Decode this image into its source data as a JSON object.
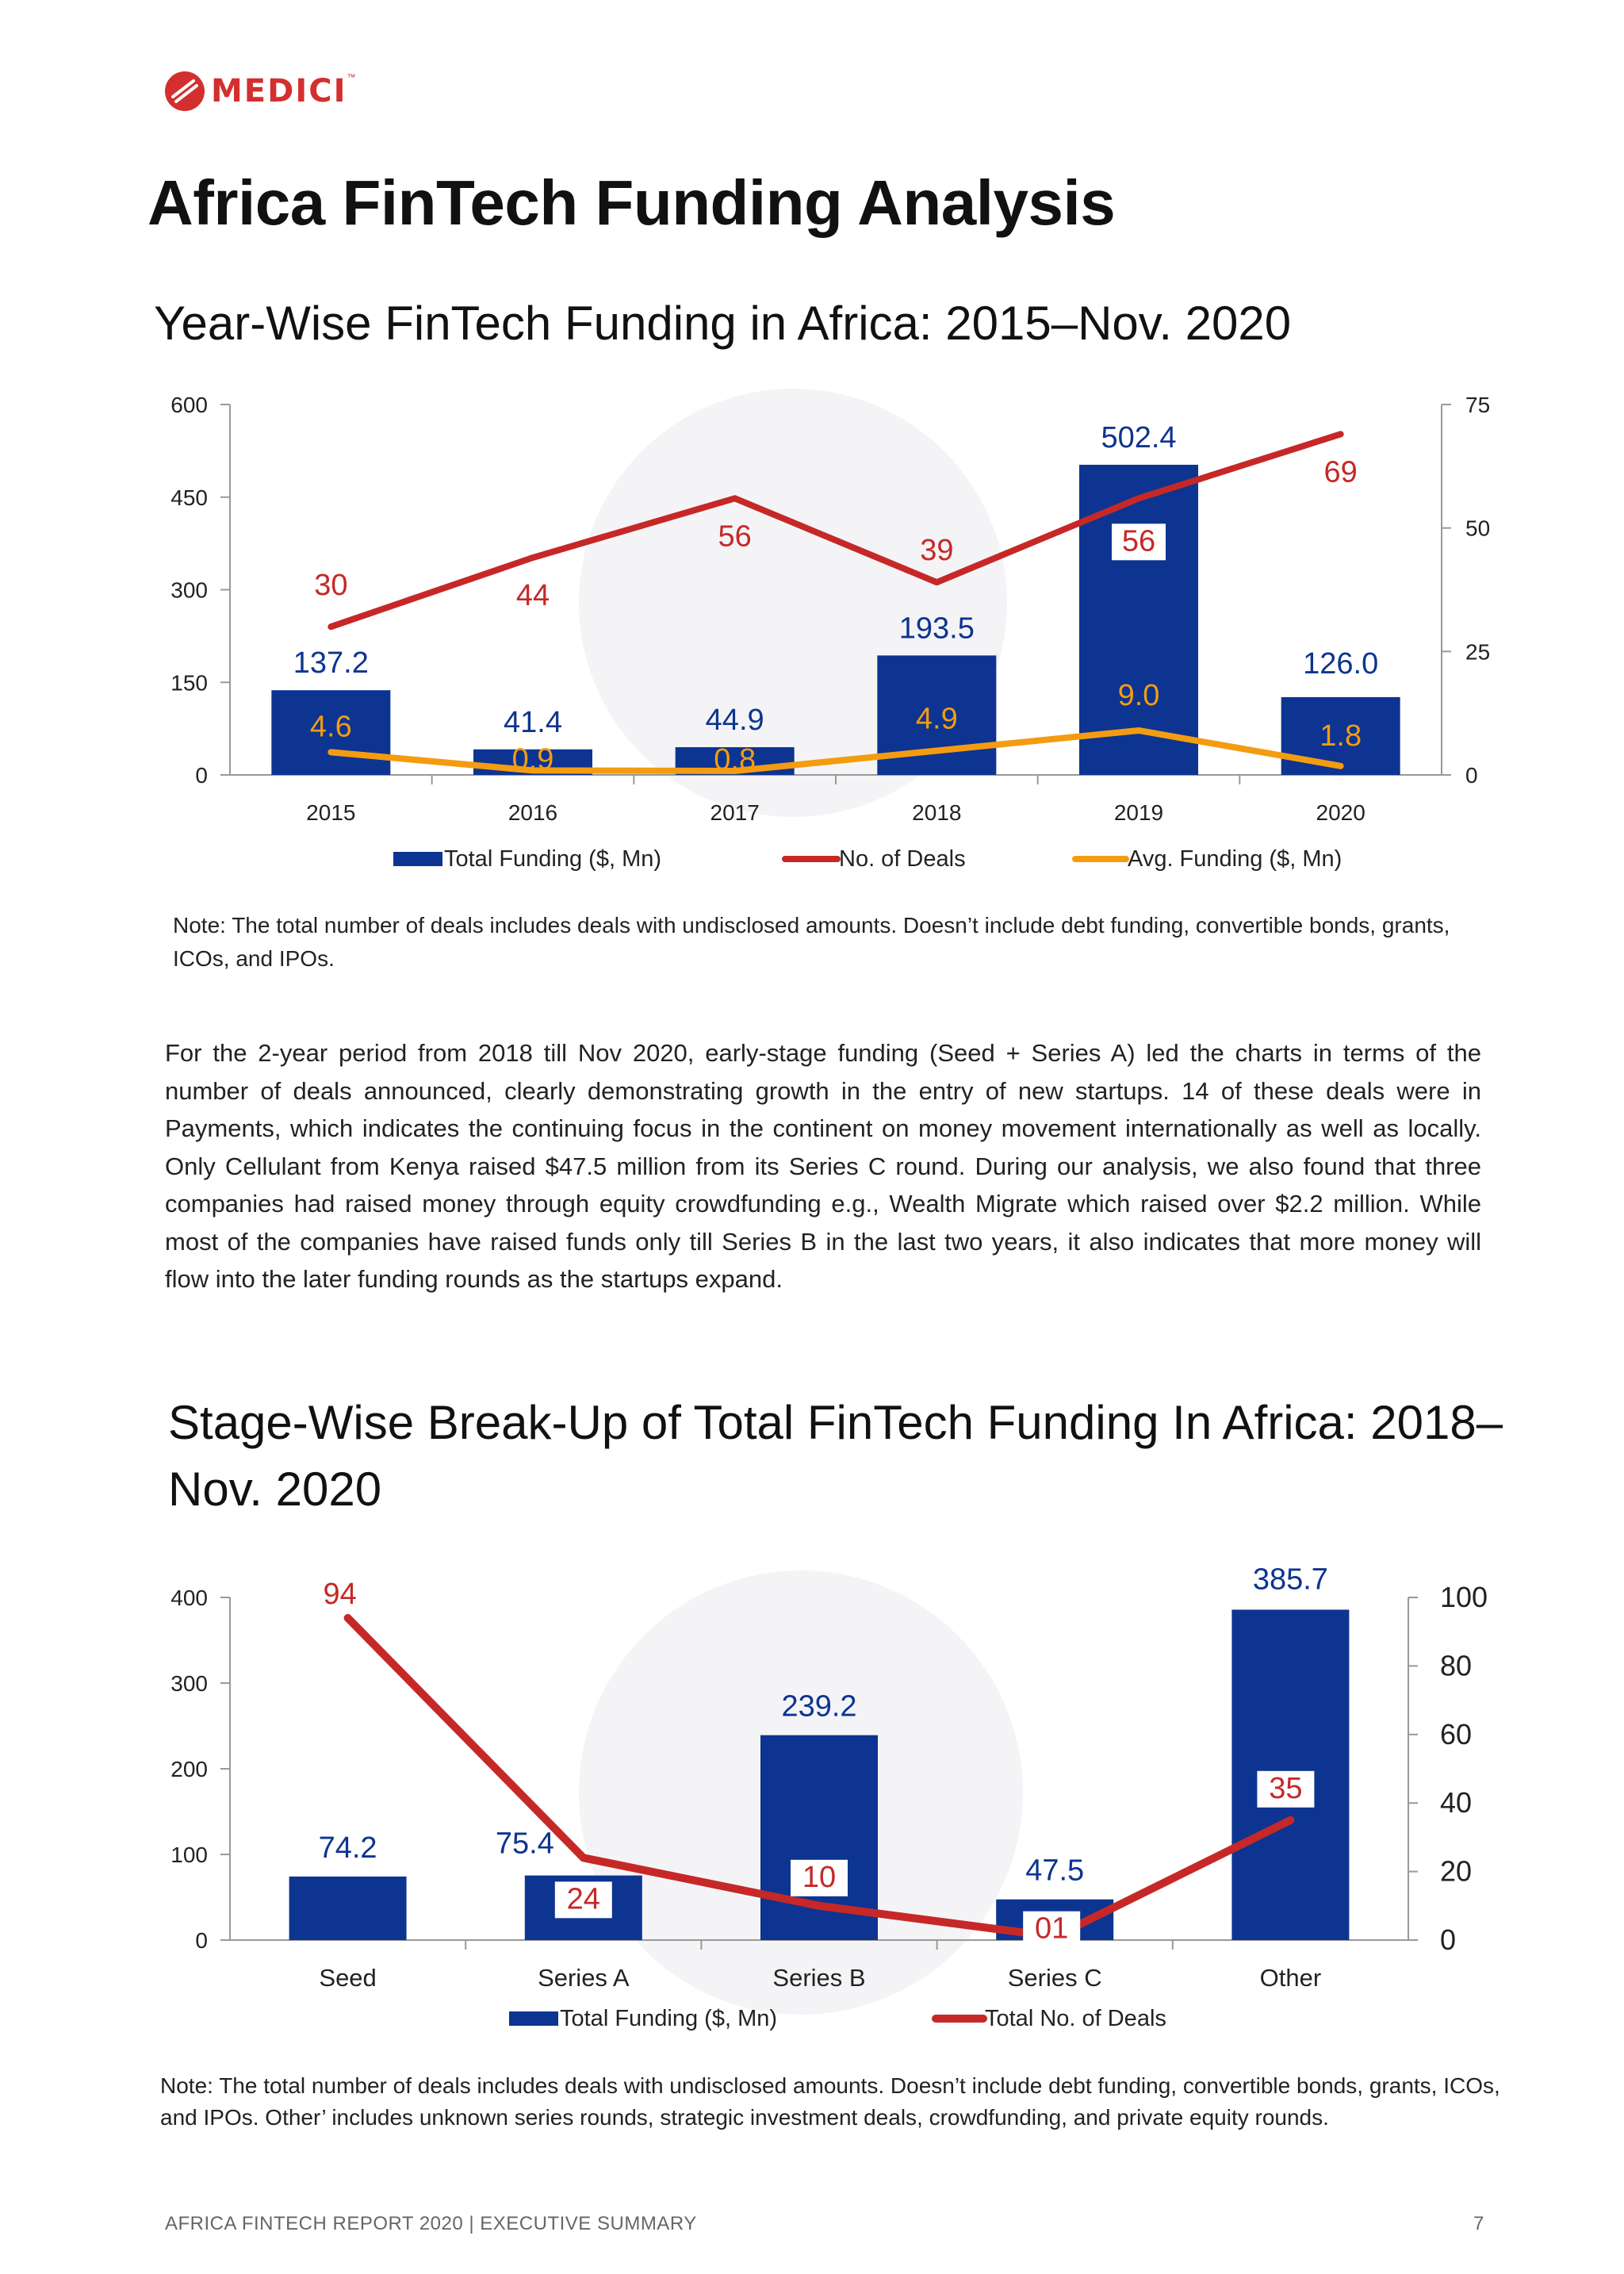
{
  "header": {
    "logo_text": "MEDICI",
    "logo_tm": "™",
    "page_title": "Africa FinTech Funding Analysis"
  },
  "chart1": {
    "title": "Year-Wise FinTech Funding in Africa: 2015–Nov. 2020",
    "note": "Note: The total number of deals includes deals with undisclosed amounts. Doesn’t include debt funding, convertible bonds, grants, ICOs, and IPOs.",
    "legend": [
      "Total Funding ($, Mn)",
      "No. of Deals",
      "Avg. Funding ($, Mn)"
    ],
    "colors": {
      "bar": "#0d3490",
      "deals": "#c62828",
      "avg": "#f39c12"
    }
  },
  "body_text": "For the 2-year period from 2018 till Nov 2020, early-stage funding (Seed + Series A) led the charts in terms of the number of deals announced, clearly demonstrating growth in the entry of new startups. 14 of these deals were in Payments, which indicates the continuing focus in the continent on money movement internationally as well as locally. Only Cellulant from Kenya raised $47.5 million from its Series C round. During our analysis, we also found that three companies had raised money through equity crowdfunding e.g., Wealth Migrate which raised over $2.2 million. While most of the companies have raised funds only till Series B in the last two years, it also indicates that more money will flow into the later funding rounds as the startups expand.",
  "chart2": {
    "title": "Stage-Wise Break-Up of Total FinTech Funding In Africa: 2018–Nov. 2020",
    "note": "Note: The total number of deals includes deals with undisclosed amounts. Doesn’t include debt funding, convertible bonds, grants, ICOs, and IPOs. Other’ includes unknown series rounds, strategic investment deals, crowdfunding, and private equity rounds.",
    "legend": [
      "Total Funding ($, Mn)",
      "Total No. of Deals"
    ],
    "colors": {
      "bar": "#0d3490",
      "deals": "#c62828"
    }
  },
  "chart_data": [
    {
      "type": "bar",
      "categories": [
        "2015",
        "2016",
        "2017",
        "2018",
        "2019",
        "2020"
      ],
      "series": [
        {
          "name": "Total Funding ($, Mn)",
          "type": "bar",
          "axis": "left",
          "values": [
            137.2,
            41.4,
            44.9,
            193.5,
            502.4,
            126.0
          ],
          "labels": [
            "137.2",
            "41.4",
            "44.9",
            "193.5",
            "502.4",
            "126.0"
          ]
        },
        {
          "name": "No. of Deals",
          "type": "line",
          "axis": "right",
          "values": [
            30,
            44,
            56,
            39,
            56,
            69
          ],
          "labels": [
            "30",
            "44",
            "56",
            "39",
            "56",
            "69"
          ]
        },
        {
          "name": "Avg. Funding ($, Mn)",
          "type": "line",
          "axis": "right",
          "values": [
            4.6,
            0.9,
            0.8,
            4.9,
            9.0,
            1.8
          ],
          "labels": [
            "4.6",
            "0.9",
            "0.8",
            "4.9",
            "9.0",
            "1.8"
          ]
        }
      ],
      "y_left": {
        "min": 0,
        "max": 600,
        "ticks": [
          "0",
          "150",
          "300",
          "450",
          "600"
        ]
      },
      "y_right": {
        "min": 0,
        "max": 75,
        "ticks": [
          "0",
          "25",
          "50",
          "75"
        ]
      },
      "legend_position": "bottom"
    },
    {
      "type": "bar",
      "categories": [
        "Seed",
        "Series A",
        "Series B",
        "Series C",
        "Other"
      ],
      "series": [
        {
          "name": "Total Funding ($, Mn)",
          "type": "bar",
          "axis": "left",
          "values": [
            74.2,
            75.4,
            239.2,
            47.5,
            385.7
          ],
          "labels": [
            "74.2",
            "75.4",
            "239.2",
            "47.5",
            "385.7"
          ]
        },
        {
          "name": "Total No. of Deals",
          "type": "line",
          "axis": "right",
          "values": [
            94,
            24,
            10,
            1,
            35
          ],
          "labels": [
            "94",
            "24",
            "10",
            "01",
            "35"
          ]
        }
      ],
      "y_left": {
        "min": 0,
        "max": 400,
        "ticks": [
          "0",
          "100",
          "200",
          "300",
          "400"
        ]
      },
      "y_right": {
        "min": 0,
        "max": 100,
        "ticks": [
          "0",
          "20",
          "40",
          "60",
          "80",
          "100"
        ]
      },
      "legend_position": "bottom"
    }
  ],
  "footer": {
    "text": "AFRICA FINTECH REPORT 2020 | EXECUTIVE SUMMARY",
    "page_number": "7"
  }
}
